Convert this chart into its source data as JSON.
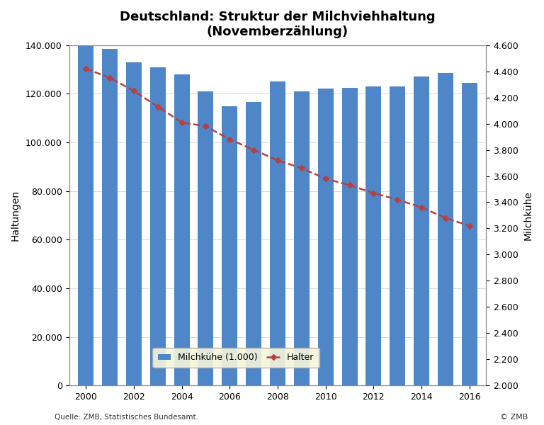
{
  "title_line1": "Deutschland: Struktur der Milchviehhaltung",
  "title_line2": "(Novemberzählung)",
  "ylabel_left": "Haltungen",
  "ylabel_right": "Milchkühe",
  "xlabel_source": "Quelle: ZMB, Statistisches Bundesamt.",
  "copyright": "© ZMB",
  "years": [
    2000,
    2001,
    2002,
    2003,
    2004,
    2005,
    2006,
    2007,
    2008,
    2009,
    2010,
    2011,
    2012,
    2013,
    2014,
    2015,
    2016
  ],
  "haltungen": [
    140000,
    138500,
    133000,
    131000,
    128000,
    121000,
    115000,
    116500,
    125000,
    121000,
    122000,
    122500,
    123000,
    123000,
    127000,
    128500,
    124500
  ],
  "milchkuehe": [
    4420,
    4350,
    4250,
    4130,
    4010,
    3980,
    3880,
    3800,
    3720,
    3660,
    3580,
    3530,
    3470,
    3420,
    3360,
    3280,
    3220
  ],
  "bar_color": "#4E86C8",
  "line_color": "#B84040",
  "background_color": "#FFFFFF",
  "ylim_left": [
    0,
    140000
  ],
  "ylim_right": [
    2000,
    4600
  ],
  "legend_milchkuehe": "Milchkühe (1.000)",
  "legend_halter": "Halter"
}
